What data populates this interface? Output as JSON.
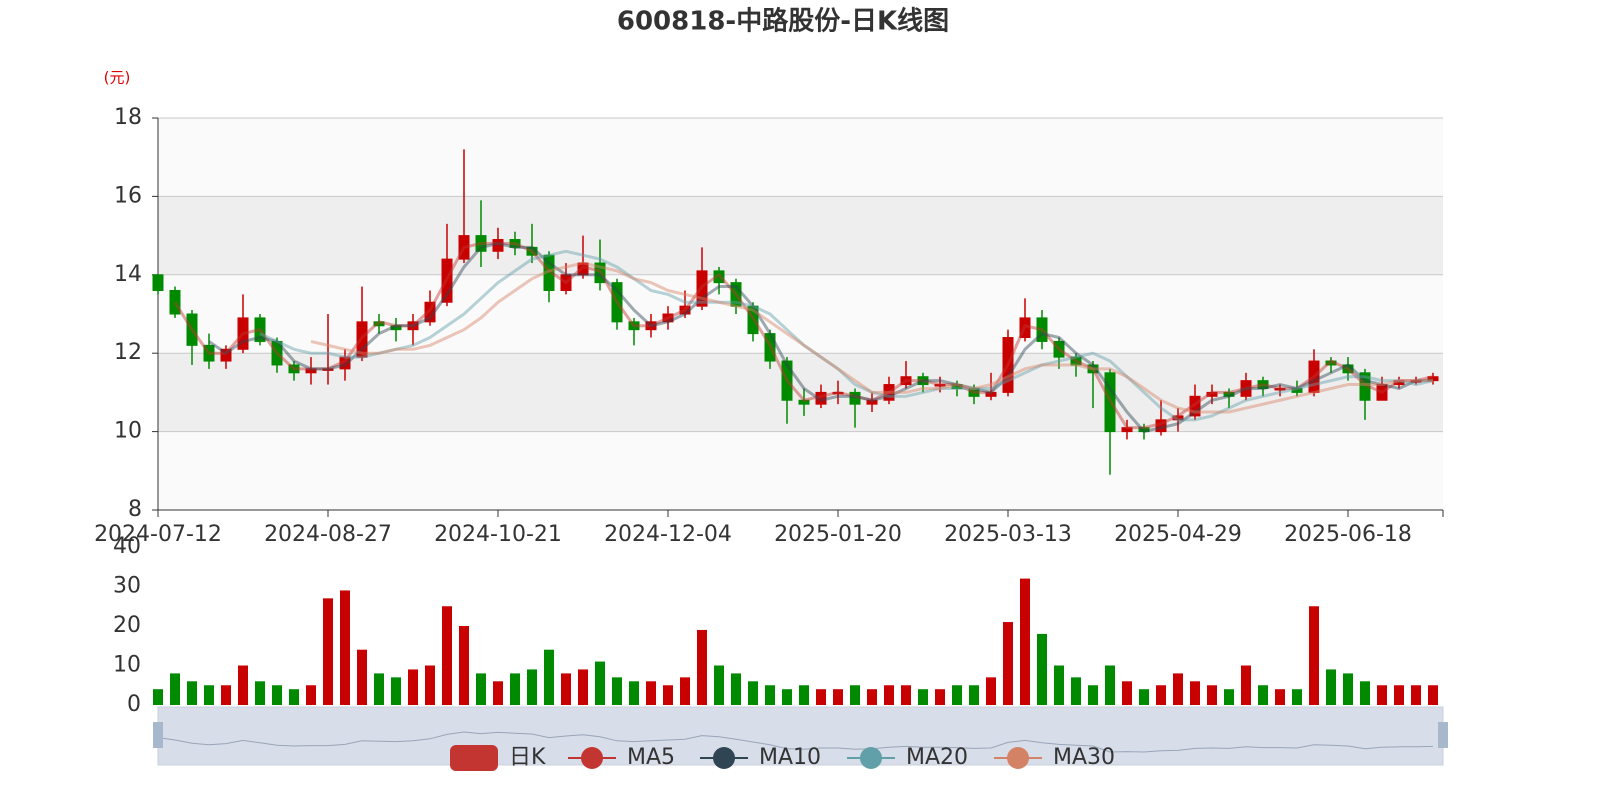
{
  "chart_data": {
    "type": "candlestick",
    "title": "600818-中路股份-日K线图",
    "y_label": "(元)",
    "grid": true,
    "ylim": [
      8,
      18
    ],
    "yticks": [
      8,
      10,
      12,
      14,
      16,
      18
    ],
    "categories": [
      "2024-07-12",
      null,
      null,
      null,
      null,
      null,
      null,
      null,
      null,
      null,
      "2024-08-27",
      null,
      null,
      null,
      null,
      null,
      null,
      null,
      null,
      null,
      "2024-10-21",
      null,
      null,
      null,
      null,
      null,
      null,
      null,
      null,
      null,
      "2024-12-04",
      null,
      null,
      null,
      null,
      null,
      null,
      null,
      null,
      null,
      "2025-01-20",
      null,
      null,
      null,
      null,
      null,
      null,
      null,
      null,
      null,
      "2025-03-13",
      null,
      null,
      null,
      null,
      null,
      null,
      null,
      null,
      null,
      "2025-04-29",
      null,
      null,
      null,
      null,
      null,
      null,
      null,
      null,
      null,
      "2025-06-18",
      null,
      null,
      null,
      null,
      null
    ],
    "series": [
      {
        "name": "日K",
        "type": "candlestick",
        "color": "#c23531",
        "up_color": "#c80000",
        "down_color": "#008a00",
        "values": [
          [
            14.0,
            13.6,
            13.5,
            14.0
          ],
          [
            13.6,
            13.0,
            12.9,
            13.7
          ],
          [
            13.0,
            12.2,
            11.7,
            13.1
          ],
          [
            12.2,
            11.8,
            11.6,
            12.5
          ],
          [
            11.8,
            12.1,
            11.6,
            12.2
          ],
          [
            12.1,
            12.9,
            12.0,
            13.5
          ],
          [
            12.9,
            12.3,
            12.2,
            13.0
          ],
          [
            12.3,
            11.7,
            11.5,
            12.4
          ],
          [
            11.7,
            11.5,
            11.3,
            11.8
          ],
          [
            11.5,
            11.6,
            11.2,
            11.9
          ],
          [
            11.6,
            11.6,
            11.2,
            13.0
          ],
          [
            11.6,
            11.9,
            11.3,
            12.1
          ],
          [
            11.9,
            12.8,
            11.8,
            13.7
          ],
          [
            12.8,
            12.7,
            12.5,
            13.0
          ],
          [
            12.7,
            12.6,
            12.3,
            12.9
          ],
          [
            12.6,
            12.8,
            12.2,
            13.0
          ],
          [
            12.8,
            13.3,
            12.7,
            13.6
          ],
          [
            13.3,
            14.4,
            13.2,
            15.3
          ],
          [
            14.4,
            15.0,
            14.3,
            17.2
          ],
          [
            15.0,
            14.6,
            14.2,
            15.9
          ],
          [
            14.6,
            14.9,
            14.4,
            15.2
          ],
          [
            14.9,
            14.7,
            14.5,
            15.1
          ],
          [
            14.7,
            14.5,
            14.3,
            15.3
          ],
          [
            14.5,
            13.6,
            13.3,
            14.6
          ],
          [
            13.6,
            14.0,
            13.5,
            14.3
          ],
          [
            14.0,
            14.3,
            13.9,
            15.0
          ],
          [
            14.3,
            13.8,
            13.6,
            14.9
          ],
          [
            13.8,
            12.8,
            12.6,
            13.9
          ],
          [
            12.8,
            12.6,
            12.2,
            12.9
          ],
          [
            12.6,
            12.8,
            12.4,
            13.0
          ],
          [
            12.8,
            13.0,
            12.6,
            13.2
          ],
          [
            13.0,
            13.2,
            12.9,
            13.6
          ],
          [
            13.2,
            14.1,
            13.1,
            14.7
          ],
          [
            14.1,
            13.8,
            13.5,
            14.2
          ],
          [
            13.8,
            13.2,
            13.0,
            13.9
          ],
          [
            13.2,
            12.5,
            12.3,
            13.3
          ],
          [
            12.5,
            11.8,
            11.6,
            12.6
          ],
          [
            11.8,
            10.8,
            10.2,
            11.9
          ],
          [
            10.8,
            10.7,
            10.4,
            11.1
          ],
          [
            10.7,
            11.0,
            10.6,
            11.2
          ],
          [
            11.0,
            11.0,
            10.7,
            11.3
          ],
          [
            11.0,
            10.7,
            10.1,
            11.1
          ],
          [
            10.7,
            10.8,
            10.5,
            11.0
          ],
          [
            10.8,
            11.2,
            10.7,
            11.4
          ],
          [
            11.2,
            11.4,
            11.1,
            11.8
          ],
          [
            11.4,
            11.2,
            11.0,
            11.5
          ],
          [
            11.2,
            11.2,
            11.0,
            11.4
          ],
          [
            11.2,
            11.1,
            10.9,
            11.3
          ],
          [
            11.1,
            10.9,
            10.7,
            11.2
          ],
          [
            10.9,
            11.0,
            10.8,
            11.5
          ],
          [
            11.0,
            12.4,
            10.9,
            12.6
          ],
          [
            12.4,
            12.9,
            12.3,
            13.4
          ],
          [
            12.9,
            12.3,
            12.1,
            13.1
          ],
          [
            12.3,
            11.9,
            11.6,
            12.4
          ],
          [
            11.9,
            11.7,
            11.4,
            12.0
          ],
          [
            11.7,
            11.5,
            10.6,
            11.8
          ],
          [
            11.5,
            10.0,
            8.9,
            11.6
          ],
          [
            10.0,
            10.1,
            9.8,
            10.3
          ],
          [
            10.1,
            10.0,
            9.8,
            10.2
          ],
          [
            10.0,
            10.3,
            9.9,
            10.8
          ],
          [
            10.3,
            10.4,
            10.0,
            10.6
          ],
          [
            10.4,
            10.9,
            10.3,
            11.2
          ],
          [
            10.9,
            11.0,
            10.7,
            11.2
          ],
          [
            11.0,
            10.9,
            10.6,
            11.1
          ],
          [
            10.9,
            11.3,
            10.8,
            11.5
          ],
          [
            11.3,
            11.1,
            10.9,
            11.4
          ],
          [
            11.1,
            11.1,
            10.9,
            11.2
          ],
          [
            11.1,
            11.0,
            10.9,
            11.3
          ],
          [
            11.0,
            11.8,
            10.9,
            12.1
          ],
          [
            11.8,
            11.7,
            11.5,
            11.9
          ],
          [
            11.7,
            11.5,
            11.3,
            11.9
          ],
          [
            11.5,
            10.8,
            10.3,
            11.6
          ],
          [
            10.8,
            11.2,
            10.8,
            11.4
          ],
          [
            11.2,
            11.3,
            11.1,
            11.4
          ],
          [
            11.3,
            11.3,
            11.2,
            11.4
          ],
          [
            11.3,
            11.4,
            11.2,
            11.5
          ]
        ]
      },
      {
        "name": "MA5",
        "type": "line",
        "color": "#c23531",
        "values": [
          null,
          13.3,
          12.6,
          12.0,
          12.0,
          12.5,
          12.6,
          12.0,
          11.6,
          11.6,
          11.6,
          11.8,
          12.4,
          12.8,
          12.7,
          12.7,
          13.1,
          13.9,
          14.7,
          14.8,
          14.8,
          14.8,
          14.6,
          14.1,
          13.8,
          14.2,
          14.1,
          13.3,
          12.7,
          12.7,
          12.9,
          13.1,
          13.7,
          14.0,
          13.5,
          12.9,
          12.2,
          11.3,
          10.8,
          10.9,
          11.0,
          10.9,
          10.8,
          11.0,
          11.3,
          11.3,
          11.2,
          11.2,
          11.0,
          11.0,
          11.7,
          12.7,
          12.6,
          12.1,
          11.8,
          11.6,
          10.8,
          10.1,
          10.1,
          10.2,
          10.4,
          10.7,
          11.0,
          11.0,
          11.1,
          11.2,
          11.1,
          11.1,
          11.4,
          11.8,
          11.6,
          11.2,
          11.0,
          11.3,
          11.3,
          11.4
        ]
      },
      {
        "name": "MA10",
        "type": "line",
        "color": "#2f4554",
        "values": [
          null,
          null,
          null,
          12.3,
          12.0,
          12.3,
          12.4,
          12.3,
          11.8,
          11.6,
          11.6,
          11.7,
          12.1,
          12.5,
          12.7,
          12.7,
          12.9,
          13.5,
          14.2,
          14.7,
          14.8,
          14.7,
          14.7,
          14.3,
          14.0,
          14.0,
          14.0,
          13.6,
          13.1,
          12.7,
          12.8,
          13.0,
          13.4,
          13.7,
          13.7,
          13.2,
          12.5,
          11.7,
          11.1,
          10.8,
          10.9,
          10.9,
          10.8,
          10.9,
          11.1,
          11.3,
          11.3,
          11.2,
          11.1,
          11.0,
          11.4,
          12.1,
          12.5,
          12.4,
          12.0,
          11.7,
          11.1,
          10.5,
          10.0,
          10.1,
          10.2,
          10.5,
          10.8,
          10.9,
          11.1,
          11.1,
          11.2,
          11.1,
          11.3,
          11.5,
          11.7,
          11.3,
          11.2,
          11.1,
          11.3,
          11.3
        ]
      },
      {
        "name": "MA20",
        "type": "line",
        "color": "#61a0a8",
        "values": [
          null,
          null,
          null,
          null,
          null,
          null,
          12.5,
          12.3,
          12.1,
          12.0,
          12.0,
          11.9,
          11.9,
          12.0,
          12.1,
          12.2,
          12.4,
          12.7,
          13.0,
          13.4,
          13.8,
          14.1,
          14.4,
          14.5,
          14.6,
          14.5,
          14.4,
          14.2,
          13.9,
          13.6,
          13.5,
          13.3,
          13.3,
          13.3,
          13.3,
          13.2,
          13.0,
          12.6,
          12.2,
          11.9,
          11.6,
          11.2,
          11.0,
          10.9,
          10.9,
          11.0,
          11.1,
          11.1,
          11.1,
          11.1,
          11.3,
          11.5,
          11.7,
          11.8,
          11.9,
          12.0,
          11.8,
          11.4,
          11.0,
          10.6,
          10.3,
          10.3,
          10.4,
          10.6,
          10.8,
          10.9,
          11.0,
          11.1,
          11.2,
          11.3,
          11.4,
          11.4,
          11.3,
          11.3,
          11.2,
          11.3
        ]
      },
      {
        "name": "MA30",
        "type": "line",
        "color": "#d48265",
        "values": [
          null,
          null,
          null,
          null,
          null,
          null,
          null,
          null,
          null,
          12.3,
          12.2,
          12.1,
          12.0,
          12.0,
          12.1,
          12.1,
          12.2,
          12.4,
          12.6,
          12.9,
          13.3,
          13.6,
          13.9,
          14.1,
          14.2,
          14.3,
          14.2,
          14.1,
          13.9,
          13.8,
          13.6,
          13.5,
          13.4,
          13.3,
          13.2,
          13.1,
          12.8,
          12.5,
          12.2,
          11.9,
          11.6,
          11.3,
          11.0,
          11.0,
          11.0,
          11.1,
          11.1,
          11.2,
          11.1,
          11.2,
          11.4,
          11.6,
          11.7,
          11.7,
          11.7,
          11.6,
          11.6,
          11.4,
          11.1,
          10.8,
          10.6,
          10.5,
          10.5,
          10.5,
          10.6,
          10.7,
          10.8,
          10.9,
          11.0,
          11.1,
          11.2,
          11.2,
          11.2,
          11.3,
          11.3,
          11.3
        ]
      }
    ],
    "volume": {
      "ylim": [
        0,
        40
      ],
      "yticks": [
        0,
        10,
        20,
        30,
        40
      ],
      "values": [
        4,
        8,
        6,
        5,
        5,
        10,
        6,
        5,
        4,
        5,
        27,
        29,
        14,
        8,
        7,
        9,
        10,
        25,
        20,
        8,
        6,
        8,
        9,
        14,
        8,
        9,
        11,
        7,
        6,
        6,
        5,
        7,
        19,
        10,
        8,
        6,
        5,
        4,
        5,
        4,
        4,
        5,
        4,
        5,
        5,
        4,
        4,
        5,
        5,
        7,
        21,
        32,
        18,
        10,
        7,
        5,
        10,
        6,
        4,
        5,
        8,
        6,
        5,
        4,
        10,
        5,
        4,
        4,
        25,
        9,
        8,
        6,
        5,
        5,
        5,
        5
      ]
    }
  }
}
